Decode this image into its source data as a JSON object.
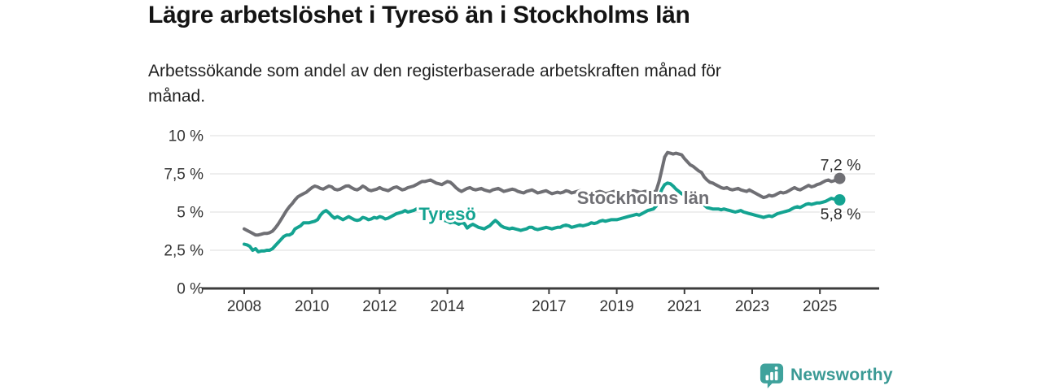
{
  "header": {
    "title": "Lägre arbetslöshet i Tyresö än i Stockholms län",
    "subtitle_line1": "Arbetssökande som andel av den registerbaserade arbetskraften månad för",
    "subtitle_line2": "månad."
  },
  "branding": {
    "logo_text": "Newsworthy",
    "logo_color": "#3b9a95",
    "logo_icon": "newsworthy-barchart-pin-icon"
  },
  "chart_data": {
    "type": "line",
    "title": "Lägre arbetslöshet i Tyresö än i Stockholms län",
    "subtitle": "Arbetssökande som andel av den registerbaserade arbetskraften månad för månad.",
    "xlabel": "",
    "ylabel": "",
    "grid": true,
    "grid_color": "#dcdcdc",
    "axis_color": "#3c3c3c",
    "ylim": [
      0,
      10.5
    ],
    "x_start_year": 2008,
    "points_per_year": 12,
    "x_ticks": [
      {
        "year": 2008,
        "label": "2008"
      },
      {
        "year": 2010,
        "label": "2010"
      },
      {
        "year": 2012,
        "label": "2012"
      },
      {
        "year": 2014,
        "label": "2014"
      },
      {
        "year": 2017,
        "label": "2017"
      },
      {
        "year": 2019,
        "label": "2019"
      },
      {
        "year": 2021,
        "label": "2021"
      },
      {
        "year": 2023,
        "label": "2023"
      },
      {
        "year": 2025,
        "label": "2025"
      }
    ],
    "y_ticks": [
      {
        "value": 0,
        "label": "0 %"
      },
      {
        "value": 2.5,
        "label": "2,5 %"
      },
      {
        "value": 5,
        "label": "5 %"
      },
      {
        "value": 7.5,
        "label": "7,5 %"
      },
      {
        "value": 10,
        "label": "10 %"
      }
    ],
    "legend_position": "inline-labels",
    "series": [
      {
        "name": "Stockholms län",
        "color": "#6f6f74",
        "end_label": "7,2 %",
        "end_value": 7.2,
        "end_label_position": "above",
        "inline_label": {
          "x": 2019.78,
          "y": 5.95
        },
        "values": [
          3.9,
          3.8,
          3.7,
          3.6,
          3.5,
          3.5,
          3.55,
          3.6,
          3.6,
          3.65,
          3.75,
          3.95,
          4.2,
          4.5,
          4.8,
          5.1,
          5.35,
          5.55,
          5.8,
          6.0,
          6.1,
          6.2,
          6.3,
          6.45,
          6.6,
          6.7,
          6.65,
          6.55,
          6.5,
          6.6,
          6.7,
          6.65,
          6.5,
          6.45,
          6.5,
          6.6,
          6.7,
          6.72,
          6.6,
          6.5,
          6.45,
          6.55,
          6.7,
          6.6,
          6.45,
          6.4,
          6.45,
          6.5,
          6.6,
          6.5,
          6.45,
          6.4,
          6.5,
          6.6,
          6.65,
          6.55,
          6.45,
          6.5,
          6.6,
          6.65,
          6.7,
          6.8,
          6.9,
          7.0,
          7.0,
          7.05,
          7.1,
          7.0,
          6.9,
          6.85,
          6.8,
          6.9,
          7.0,
          6.95,
          6.8,
          6.6,
          6.45,
          6.35,
          6.45,
          6.55,
          6.6,
          6.5,
          6.45,
          6.5,
          6.55,
          6.45,
          6.4,
          6.35,
          6.45,
          6.5,
          6.55,
          6.45,
          6.35,
          6.4,
          6.45,
          6.5,
          6.45,
          6.35,
          6.3,
          6.25,
          6.35,
          6.4,
          6.45,
          6.35,
          6.25,
          6.3,
          6.35,
          6.4,
          6.3,
          6.2,
          6.25,
          6.3,
          6.25,
          6.3,
          6.4,
          6.35,
          6.25,
          6.3,
          6.35,
          6.4,
          6.35,
          6.3,
          6.25,
          6.2,
          6.25,
          6.3,
          6.35,
          6.3,
          6.2,
          6.25,
          6.3,
          6.35,
          6.3,
          6.25,
          6.2,
          6.25,
          6.3,
          6.35,
          6.4,
          6.35,
          6.3,
          6.3,
          6.35,
          6.35,
          6.35,
          6.3,
          6.4,
          7.0,
          7.8,
          8.6,
          8.9,
          8.85,
          8.8,
          8.85,
          8.8,
          8.75,
          8.5,
          8.3,
          8.1,
          8.0,
          7.85,
          7.7,
          7.6,
          7.3,
          7.1,
          6.95,
          6.9,
          6.8,
          6.7,
          6.6,
          6.55,
          6.6,
          6.5,
          6.45,
          6.5,
          6.55,
          6.45,
          6.4,
          6.35,
          6.45,
          6.35,
          6.25,
          6.15,
          6.05,
          5.95,
          6.0,
          6.1,
          6.05,
          6.1,
          6.2,
          6.3,
          6.25,
          6.3,
          6.4,
          6.5,
          6.6,
          6.5,
          6.45,
          6.55,
          6.65,
          6.75,
          6.65,
          6.7,
          6.8,
          6.85,
          6.95,
          7.05,
          7.1,
          7.0,
          7.05,
          7.15,
          7.2
        ]
      },
      {
        "name": "Tyresö",
        "color": "#14a391",
        "end_label": "5,8 %",
        "end_value": 5.8,
        "end_label_position": "below",
        "inline_label": {
          "x": 2014.0,
          "y": 4.9
        },
        "values": [
          2.9,
          2.85,
          2.75,
          2.5,
          2.6,
          2.4,
          2.45,
          2.45,
          2.5,
          2.5,
          2.6,
          2.8,
          3.0,
          3.2,
          3.4,
          3.5,
          3.5,
          3.6,
          3.9,
          4.0,
          4.1,
          4.3,
          4.3,
          4.3,
          4.35,
          4.4,
          4.5,
          4.8,
          5.0,
          5.1,
          4.95,
          4.75,
          4.6,
          4.7,
          4.6,
          4.5,
          4.6,
          4.7,
          4.6,
          4.5,
          4.45,
          4.5,
          4.65,
          4.6,
          4.5,
          4.55,
          4.65,
          4.6,
          4.7,
          4.65,
          4.55,
          4.6,
          4.7,
          4.8,
          4.9,
          4.95,
          5.0,
          5.1,
          5.0,
          5.05,
          5.1,
          5.2,
          5.25,
          5.2,
          5.1,
          5.0,
          4.9,
          4.8,
          4.7,
          4.6,
          4.5,
          4.45,
          4.4,
          4.3,
          4.35,
          4.3,
          4.2,
          4.3,
          4.25,
          3.95,
          4.1,
          4.2,
          4.1,
          4.0,
          3.95,
          3.9,
          4.0,
          4.1,
          4.3,
          4.45,
          4.3,
          4.1,
          4.0,
          3.95,
          3.9,
          3.95,
          3.9,
          3.85,
          3.8,
          3.85,
          3.9,
          4.0,
          4.0,
          3.9,
          3.85,
          3.9,
          3.95,
          4.0,
          3.95,
          3.9,
          3.95,
          4.0,
          4.0,
          4.1,
          4.15,
          4.1,
          4.0,
          4.05,
          4.1,
          4.15,
          4.1,
          4.15,
          4.2,
          4.3,
          4.25,
          4.3,
          4.4,
          4.45,
          4.4,
          4.45,
          4.5,
          4.5,
          4.5,
          4.55,
          4.6,
          4.65,
          4.7,
          4.75,
          4.8,
          4.85,
          4.8,
          4.9,
          5.0,
          5.1,
          5.15,
          5.2,
          5.4,
          6.0,
          6.5,
          6.8,
          6.9,
          6.85,
          6.7,
          6.5,
          6.35,
          6.2,
          6.1,
          6.0,
          5.9,
          5.85,
          5.75,
          5.7,
          5.6,
          5.45,
          5.3,
          5.25,
          5.2,
          5.2,
          5.2,
          5.15,
          5.2,
          5.15,
          5.1,
          5.05,
          5.0,
          5.05,
          5.1,
          5.0,
          4.95,
          4.9,
          4.85,
          4.8,
          4.75,
          4.7,
          4.65,
          4.7,
          4.75,
          4.7,
          4.8,
          4.9,
          4.95,
          5.0,
          5.05,
          5.1,
          5.2,
          5.3,
          5.35,
          5.3,
          5.4,
          5.5,
          5.55,
          5.5,
          5.55,
          5.6,
          5.6,
          5.65,
          5.7,
          5.8,
          5.9,
          5.85,
          5.9,
          5.8
        ]
      }
    ]
  }
}
